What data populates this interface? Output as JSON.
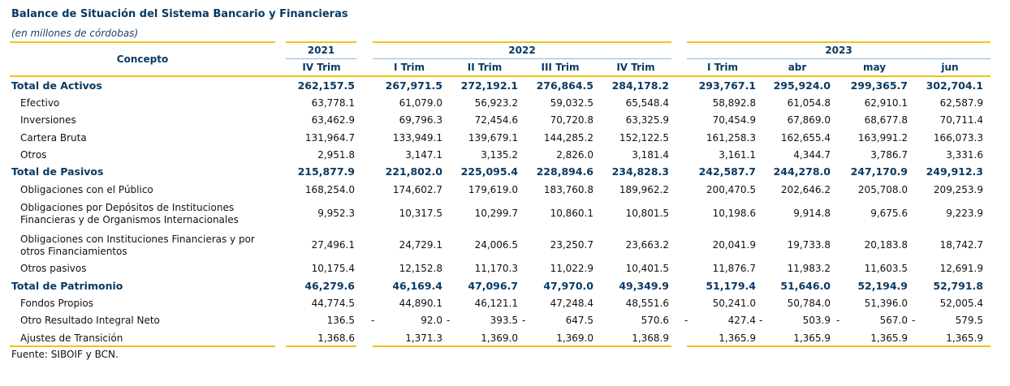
{
  "title": "Balance de Situación del Sistema Bancario y Financieras",
  "subtitle": "(en millones de córdobas)",
  "concept_header": "Concepto",
  "years": [
    "2021",
    "2022",
    "2023"
  ],
  "periods": [
    "IV Trim",
    "I Trim",
    "II Trim",
    "III Trim",
    "IV Trim",
    "I Trim",
    "abr",
    "may",
    "jun"
  ],
  "rows": [
    {
      "label": "Total de Activos",
      "total": true,
      "values": [
        "262,157.5",
        "267,971.5",
        "272,192.1",
        "276,864.5",
        "284,178.2",
        "293,767.1",
        "295,924.0",
        "299,365.7",
        "302,704.1"
      ]
    },
    {
      "label": "Efectivo",
      "total": false,
      "values": [
        "63,778.1",
        "61,079.0",
        "56,923.2",
        "59,032.5",
        "65,548.4",
        "58,892.8",
        "61,054.8",
        "62,910.1",
        "62,587.9"
      ]
    },
    {
      "label": "Inversiones",
      "total": false,
      "values": [
        "63,462.9",
        "69,796.3",
        "72,454.6",
        "70,720.8",
        "63,325.9",
        "70,454.9",
        "67,869.0",
        "68,677.8",
        "70,711.4"
      ]
    },
    {
      "label": "Cartera Bruta",
      "total": false,
      "values": [
        "131,964.7",
        "133,949.1",
        "139,679.1",
        "144,285.2",
        "152,122.5",
        "161,258.3",
        "162,655.4",
        "163,991.2",
        "166,073.3"
      ]
    },
    {
      "label": "Otros",
      "total": false,
      "values": [
        "2,951.8",
        "3,147.1",
        "3,135.2",
        "2,826.0",
        "3,181.4",
        "3,161.1",
        "4,344.7",
        "3,786.7",
        "3,331.6"
      ]
    },
    {
      "label": "Total de Pasivos",
      "total": true,
      "values": [
        "215,877.9",
        "221,802.0",
        "225,095.4",
        "228,894.6",
        "234,828.3",
        "242,587.7",
        "244,278.0",
        "247,170.9",
        "249,912.3"
      ]
    },
    {
      "label": "Obligaciones con el Público",
      "total": false,
      "values": [
        "168,254.0",
        "174,602.7",
        "179,619.0",
        "183,760.8",
        "189,962.2",
        "200,470.5",
        "202,646.2",
        "205,708.0",
        "209,253.9"
      ]
    },
    {
      "label": "Obligaciones por Depósitos de Instituciones\nFinancieras y de Organismos Internacionales",
      "total": false,
      "values": [
        "9,952.3",
        "10,317.5",
        "10,299.7",
        "10,860.1",
        "10,801.5",
        "10,198.6",
        "9,914.8",
        "9,675.6",
        "9,223.9"
      ]
    },
    {
      "label": "Obligaciones con Instituciones Financieras y por\notros Financiamientos",
      "total": false,
      "values": [
        "27,496.1",
        "24,729.1",
        "24,006.5",
        "23,250.7",
        "23,663.2",
        "20,041.9",
        "19,733.8",
        "20,183.8",
        "18,742.7"
      ]
    },
    {
      "label": "Otros pasivos",
      "total": false,
      "values": [
        "10,175.4",
        "12,152.8",
        "11,170.3",
        "11,022.9",
        "10,401.5",
        "11,876.7",
        "11,983.2",
        "11,603.5",
        "12,691.9"
      ]
    },
    {
      "label": "Total de Patrimonio",
      "total": true,
      "values": [
        "46,279.6",
        "46,169.4",
        "47,096.7",
        "47,970.0",
        "49,349.9",
        "51,179.4",
        "51,646.0",
        "52,194.9",
        "52,791.8"
      ]
    },
    {
      "label": "Fondos Propios",
      "total": false,
      "values": [
        "44,774.5",
        "44,890.1",
        "46,121.1",
        "47,248.4",
        "48,551.6",
        "50,241.0",
        "50,784.0",
        "51,396.0",
        "52,005.4"
      ]
    },
    {
      "label": "Otro Resultado Integral Neto",
      "total": false,
      "values": [
        "136.5",
        "92.0",
        "393.5",
        "647.5",
        "570.6",
        "427.4",
        "503.9",
        "567.0",
        "579.5"
      ],
      "dashes": [
        false,
        true,
        true,
        true,
        false,
        true,
        true,
        true,
        true
      ]
    },
    {
      "label": "Ajustes de Transición",
      "total": false,
      "values": [
        "1,368.6",
        "1,371.3",
        "1,369.0",
        "1,369.0",
        "1,368.9",
        "1,365.9",
        "1,365.9",
        "1,365.9",
        "1,365.9"
      ]
    }
  ],
  "dash_symbol": "-",
  "source": "Fuente: SIBOIF y BCN.",
  "colors": {
    "gold": "#f0c419",
    "header_blue": "#0a3a63",
    "line_blue": "#8ab7e0"
  }
}
